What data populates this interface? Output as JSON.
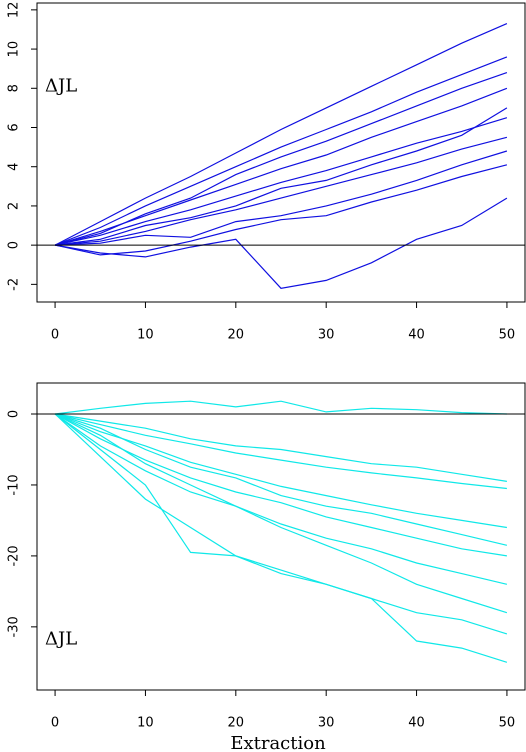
{
  "chart_data": [
    {
      "type": "line",
      "annotation": "ΔJL",
      "color": "#1010e0",
      "x": [
        0,
        5,
        10,
        15,
        20,
        25,
        30,
        35,
        40,
        45,
        50
      ],
      "xlim": [
        -2,
        52
      ],
      "xticks": [
        0,
        10,
        20,
        30,
        40,
        50
      ],
      "ylim": [
        -2.9,
        12.35
      ],
      "yticks": [
        -2,
        0,
        2,
        4,
        6,
        8,
        10,
        12
      ],
      "hline": 0,
      "series": [
        {
          "values": [
            0,
            1.2,
            2.4,
            3.5,
            4.7,
            5.9,
            7.0,
            8.1,
            9.2,
            10.3,
            11.3
          ]
        },
        {
          "values": [
            0,
            0.9,
            2.0,
            3.0,
            4.0,
            5.0,
            5.9,
            6.8,
            7.8,
            8.7,
            9.6
          ]
        },
        {
          "values": [
            0,
            0.7,
            1.5,
            2.3,
            3.1,
            3.9,
            4.6,
            5.5,
            6.3,
            7.1,
            8.0
          ]
        },
        {
          "values": [
            0,
            0.5,
            1.2,
            1.8,
            2.5,
            3.2,
            3.8,
            4.5,
            5.2,
            5.8,
            6.5
          ]
        },
        {
          "values": [
            0,
            0.2,
            0.7,
            1.3,
            1.8,
            2.4,
            3.0,
            3.6,
            4.2,
            4.9,
            5.5
          ]
        },
        {
          "values": [
            0,
            -0.5,
            -0.3,
            0.2,
            0.8,
            1.3,
            1.5,
            2.2,
            2.8,
            3.5,
            4.1
          ]
        },
        {
          "values": [
            0,
            -0.4,
            -0.6,
            -0.1,
            0.3,
            -2.2,
            -1.8,
            -0.9,
            0.3,
            1.0,
            2.4
          ]
        },
        {
          "values": [
            0,
            0.6,
            1.6,
            2.4,
            3.6,
            4.5,
            5.3,
            6.2,
            7.1,
            8.0,
            8.8
          ]
        },
        {
          "values": [
            0,
            0.3,
            1.0,
            1.4,
            2.0,
            2.9,
            3.3,
            4.1,
            4.8,
            5.6,
            7.0
          ]
        },
        {
          "values": [
            0,
            0.1,
            0.5,
            0.4,
            1.2,
            1.5,
            2.0,
            2.6,
            3.3,
            4.1,
            4.8
          ]
        }
      ]
    },
    {
      "type": "line",
      "annotation": "ΔJL",
      "x_label": "Extraction",
      "color": "#10e8e8",
      "x": [
        0,
        5,
        10,
        15,
        20,
        25,
        30,
        35,
        40,
        45,
        50
      ],
      "xlim": [
        -2,
        52
      ],
      "xticks": [
        0,
        10,
        20,
        30,
        40,
        50
      ],
      "ylim": [
        -38.9,
        4.37
      ],
      "yticks": [
        -30,
        -20,
        -10,
        0
      ],
      "hline": 0,
      "series": [
        {
          "values": [
            0,
            0.8,
            1.5,
            1.8,
            1.0,
            1.8,
            0.3,
            0.8,
            0.6,
            0.2,
            0.0
          ]
        },
        {
          "values": [
            0,
            -1.5,
            -3,
            -4.2,
            -5.5,
            -6.5,
            -7.5,
            -8.3,
            -9,
            -9.8,
            -10.5
          ]
        },
        {
          "values": [
            0,
            -2.5,
            -4.5,
            -6.8,
            -8.5,
            -10.2,
            -11.5,
            -12.8,
            -14,
            -15,
            -16
          ]
        },
        {
          "values": [
            0,
            -3.5,
            -6.5,
            -9,
            -11,
            -12.5,
            -14.5,
            -16,
            -17.5,
            -19,
            -20
          ]
        },
        {
          "values": [
            0,
            -4.5,
            -8,
            -11,
            -13,
            -15.5,
            -17.5,
            -19,
            -21,
            -22.5,
            -24
          ]
        },
        {
          "values": [
            0,
            -6,
            -12,
            -16,
            -20,
            -22.5,
            -24,
            -26,
            -28,
            -29,
            -31
          ]
        },
        {
          "values": [
            0,
            -5,
            -10,
            -19.5,
            -20,
            -22,
            -24,
            -26,
            -32,
            -33,
            -35
          ]
        },
        {
          "values": [
            0,
            -2,
            -5,
            -7.5,
            -9,
            -11.5,
            -13,
            -14,
            -15.5,
            -17,
            -18.5
          ]
        },
        {
          "values": [
            0,
            -1,
            -2,
            -3.5,
            -4.5,
            -5,
            -6,
            -7,
            -7.5,
            -8.5,
            -9.5
          ]
        },
        {
          "values": [
            0,
            -3,
            -7,
            -10,
            -13,
            -16,
            -18.5,
            -21,
            -24,
            -26,
            -28
          ]
        }
      ]
    }
  ]
}
